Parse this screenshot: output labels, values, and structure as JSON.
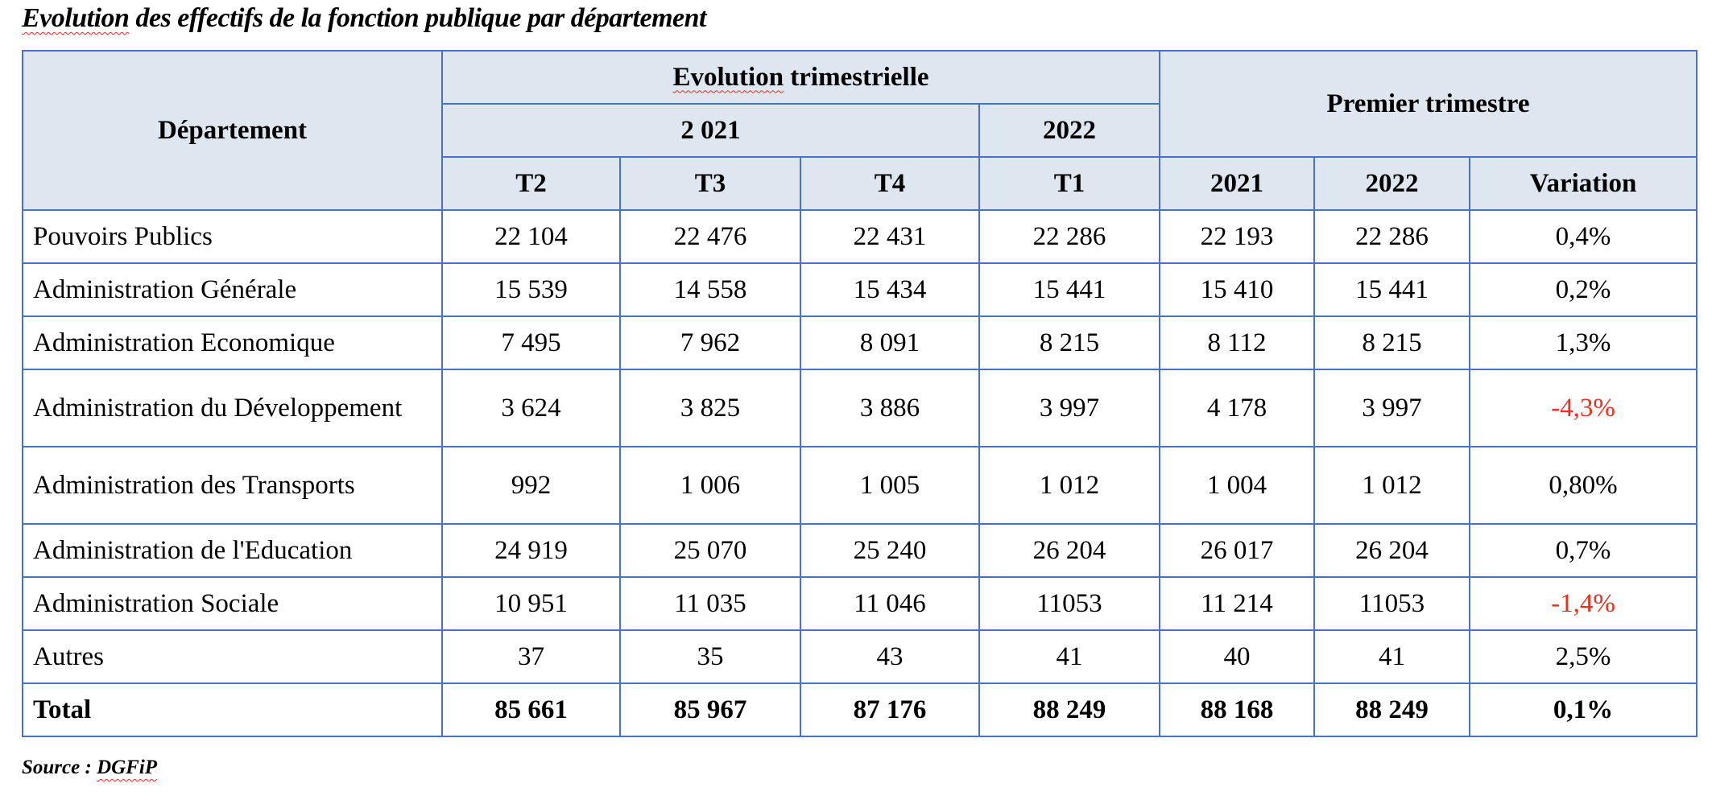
{
  "title": {
    "prefix": "Evolution",
    "rest": " des effectifs de la fonction publique par département"
  },
  "header": {
    "department": "Département",
    "evolution_prefix": "Evolution",
    "evolution_rest": " trimestrielle",
    "year_2021": "2 021",
    "year_2022": "2022",
    "premier_trimestre": "Premier trimestre",
    "columns": [
      "T2",
      "T3",
      "T4",
      "T1",
      "2021",
      "2022",
      "Variation"
    ]
  },
  "rows": [
    {
      "label": "Pouvoirs Publics",
      "values": [
        "22 104",
        "22 476",
        "22 431",
        "22 286",
        "22 193",
        "22 286",
        "0,4%"
      ],
      "negative": false
    },
    {
      "label": "Administration Générale",
      "values": [
        "15 539",
        "14 558",
        "15 434",
        "15 441",
        "15 410",
        "15 441",
        "0,2%"
      ],
      "negative": false
    },
    {
      "label": "Administration Economique",
      "values": [
        "7 495",
        "7 962",
        "8 091",
        "8 215",
        "8 112",
        "8 215",
        "1,3%"
      ],
      "negative": false
    },
    {
      "label": "Administration du Développement",
      "values": [
        "3 624",
        "3 825",
        "3 886",
        "3 997",
        "4 178",
        "3 997",
        "-4,3%"
      ],
      "negative": true
    },
    {
      "label": "Administration des Transports",
      "values": [
        "992",
        "1 006",
        "1 005",
        "1 012",
        "1 004",
        "1 012",
        "0,80%"
      ],
      "negative": false
    },
    {
      "label": "Administration de l'Education",
      "values": [
        "24 919",
        "25 070",
        "25 240",
        "26 204",
        "26 017",
        "26 204",
        "0,7%"
      ],
      "negative": false
    },
    {
      "label": "Administration Sociale",
      "values": [
        "10 951",
        "11 035",
        "11 046",
        "11053",
        "11 214",
        "11053",
        "-1,4%"
      ],
      "negative": true
    },
    {
      "label": "Autres",
      "values": [
        "37",
        "35",
        "43",
        "41",
        "40",
        "41",
        "2,5%"
      ],
      "negative": false
    },
    {
      "label": "Total",
      "values": [
        "85 661",
        "85 967",
        "87 176",
        "88 249",
        "88 168",
        "88 249",
        "0,1%"
      ],
      "negative": false
    }
  ],
  "source": {
    "label": "Source : ",
    "name": "DGFiP"
  },
  "colors": {
    "border": "#4a72c4",
    "header_bg": "#dee6f0",
    "negative": "#e8321e"
  }
}
